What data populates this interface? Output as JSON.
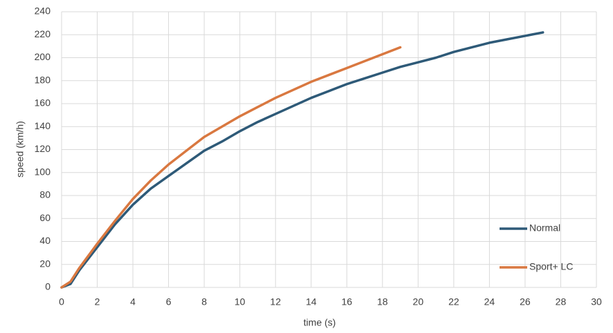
{
  "chart_data": {
    "type": "line",
    "x_label": "time (s)",
    "y_label": "speed (km/h)",
    "series": [
      {
        "name": "Normal",
        "color": "#2e5a78",
        "x": [
          0,
          0.5,
          1,
          2,
          3,
          4,
          5,
          6,
          7,
          8,
          9,
          10,
          11,
          12,
          13,
          14,
          15,
          16,
          17,
          18,
          19,
          20,
          21,
          22,
          23,
          24,
          25,
          26,
          27
        ],
        "values": [
          0,
          3,
          15,
          35,
          55,
          72,
          86,
          97,
          108,
          119,
          127,
          136,
          144,
          151,
          158,
          165,
          171,
          177,
          182,
          187,
          192,
          196,
          200,
          205,
          209,
          213,
          216,
          219,
          222
        ]
      },
      {
        "name": "Sport+ LC",
        "color": "#d97840",
        "x": [
          0,
          0.5,
          1,
          2,
          3,
          4,
          5,
          6,
          7,
          8,
          9,
          10,
          11,
          12,
          13,
          14,
          15,
          16,
          17,
          18,
          19
        ],
        "values": [
          0,
          5,
          17,
          38,
          58,
          77,
          93,
          107,
          119,
          131,
          140,
          149,
          157,
          165,
          172,
          179,
          185,
          191,
          197,
          203,
          209
        ]
      }
    ],
    "xlim": [
      0,
      30
    ],
    "xticks": [
      0,
      2,
      4,
      6,
      8,
      10,
      12,
      14,
      16,
      18,
      20,
      22,
      24,
      26,
      28,
      30
    ],
    "ylim": [
      0,
      240
    ],
    "yticks": [
      0,
      20,
      40,
      60,
      80,
      100,
      120,
      140,
      160,
      180,
      200,
      220,
      240
    ],
    "grid": true,
    "legend": "right"
  }
}
